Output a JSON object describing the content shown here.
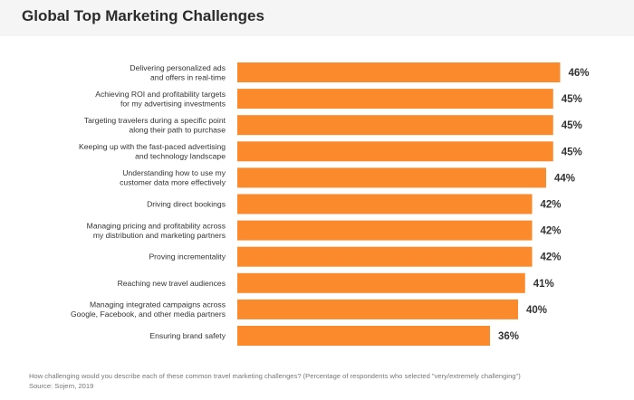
{
  "header": {
    "title": "Global Top Marketing Challenges"
  },
  "colors": {
    "bar": "#fa8a2c",
    "text": "#333333",
    "header_bg": "#f5f5f5"
  },
  "chart_data": {
    "type": "bar",
    "orientation": "horizontal",
    "title": "Global Top Marketing Challenges",
    "categories": [
      [
        "Delivering personalized ads",
        "and offers in real-time"
      ],
      [
        "Achieving ROI and profitability targets",
        "for my advertising investments"
      ],
      [
        "Targeting travelers during a specific point",
        "along their path to purchase"
      ],
      [
        "Keeping up with the fast-paced advertising",
        "and technology landscape"
      ],
      [
        "Understanding how to use my",
        "customer data more effectively"
      ],
      [
        "Driving direct bookings"
      ],
      [
        "Managing pricing and profitability across",
        "my distribution and marketing partners"
      ],
      [
        "Proving incrementality"
      ],
      [
        "Reaching new travel audiences"
      ],
      [
        "Managing integrated campaigns across",
        "Google, Facebook, and other media partners"
      ],
      [
        "Ensuring brand safety"
      ]
    ],
    "values": [
      46,
      45,
      45,
      45,
      44,
      42,
      42,
      42,
      41,
      40,
      36
    ],
    "value_suffix": "%",
    "xlabel": "",
    "ylabel": "",
    "grid": false,
    "legend": "none"
  },
  "footer": {
    "question": "How challenging would you describe each of these common travel marketing challenges? (Percentage of respondents who selected \"very/extremely challenging\")",
    "source": "Source: Sojern, 2019"
  }
}
